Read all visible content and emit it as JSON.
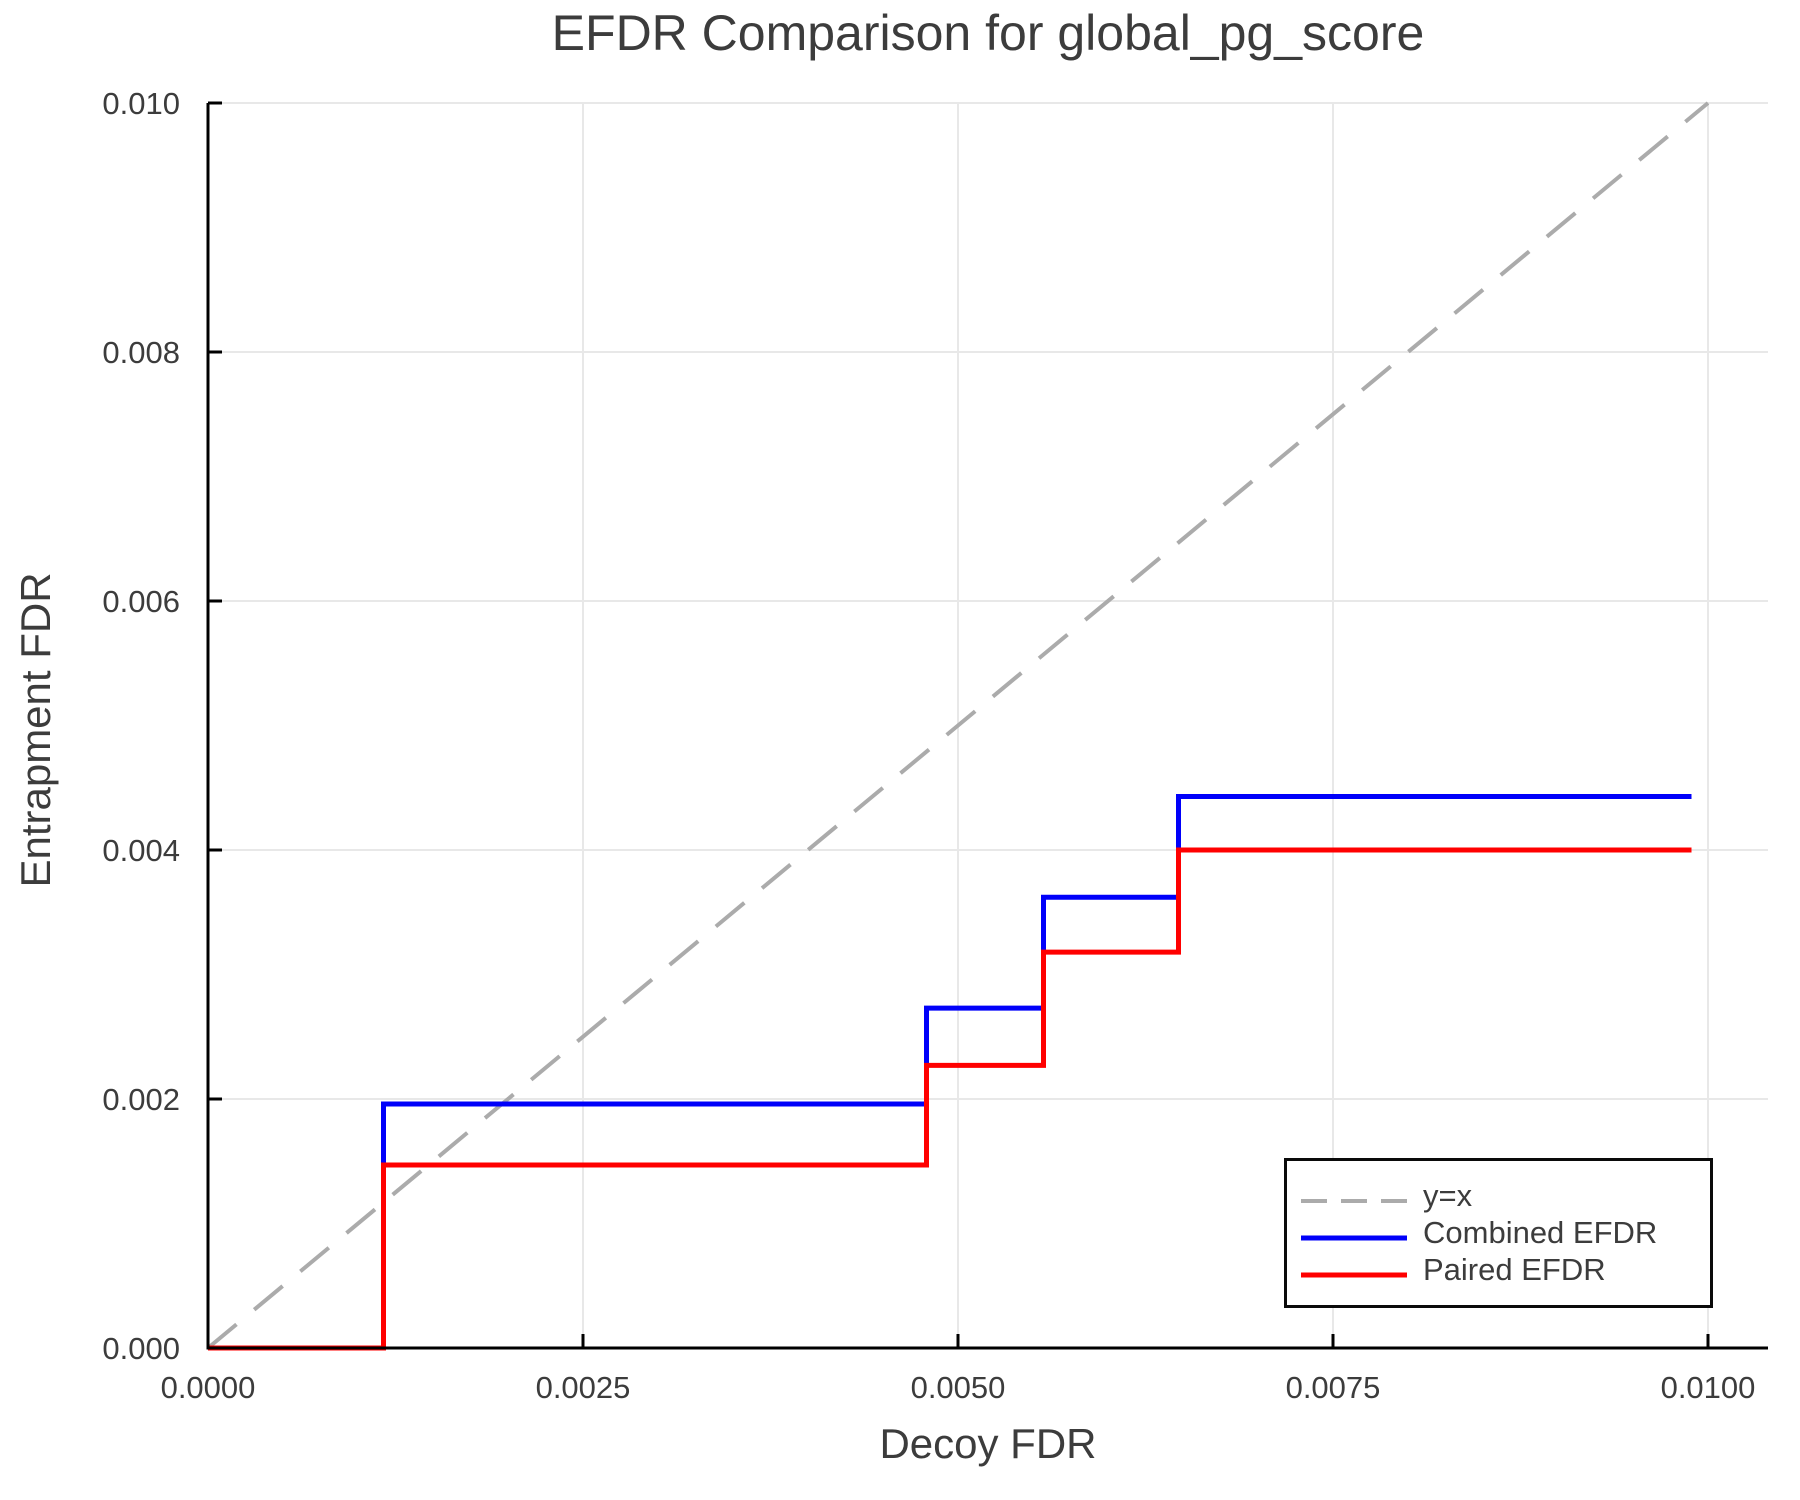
{
  "chart_data": {
    "type": "line",
    "title": "EFDR Comparison for global_pg_score",
    "xlabel": "Decoy FDR",
    "ylabel": "Entrapment FDR",
    "xlim": [
      0,
      0.0104
    ],
    "ylim": [
      0,
      0.01
    ],
    "grid": true,
    "legend_position": "lower right",
    "x_ticks": {
      "values": [
        0,
        0.0025,
        0.005,
        0.0075,
        0.01
      ],
      "labels": [
        "0.0000",
        "0.0025",
        "0.0050",
        "0.0075",
        "0.0100"
      ]
    },
    "y_ticks": {
      "values": [
        0,
        0.002,
        0.004,
        0.006,
        0.008,
        0.01
      ],
      "labels": [
        "0.000",
        "0.002",
        "0.004",
        "0.006",
        "0.008",
        "0.010"
      ]
    },
    "series": [
      {
        "name": "y=x",
        "type": "line",
        "style": "dashed",
        "color": "#ababab",
        "width": 4,
        "x": [
          0,
          0.01
        ],
        "y": [
          0,
          0.01
        ]
      },
      {
        "name": "Combined EFDR",
        "type": "step-post",
        "style": "solid",
        "color": "#0000fa",
        "width": 5,
        "x": [
          0,
          0.00117,
          0.00479,
          0.00557,
          0.00647,
          0.00989
        ],
        "y": [
          0,
          0.00196,
          0.00273,
          0.00362,
          0.00443,
          0.00443
        ]
      },
      {
        "name": "Paired EFDR",
        "type": "step-post",
        "style": "solid",
        "color": "#ff0000",
        "width": 5,
        "x": [
          0,
          0.00117,
          0.00479,
          0.00557,
          0.00647,
          0.00989
        ],
        "y": [
          0,
          0.00147,
          0.00227,
          0.00318,
          0.004,
          0.004
        ]
      }
    ],
    "colors": {
      "text": "#3c3c3c",
      "grid": "#e8e8e8",
      "spine": "#000000",
      "identity": "#ababab",
      "combined": "#0000fa",
      "paired": "#ff0000"
    }
  }
}
